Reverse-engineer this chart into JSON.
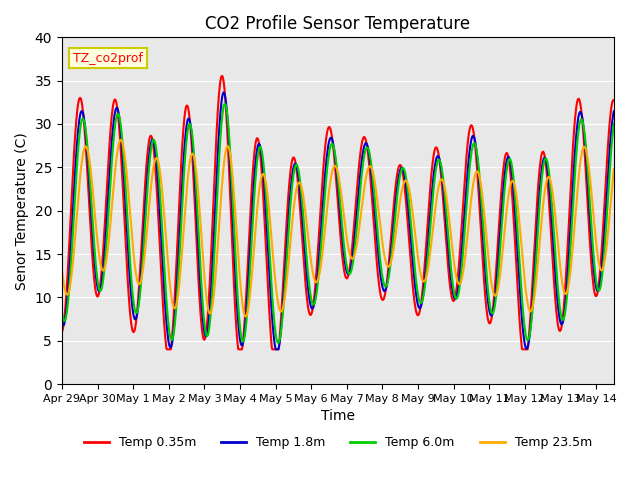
{
  "title": "CO2 Profile Sensor Temperature",
  "xlabel": "Time",
  "ylabel": "Senor Temperature (C)",
  "ylim": [
    0,
    40
  ],
  "yticks": [
    0,
    5,
    10,
    15,
    20,
    25,
    30,
    35,
    40
  ],
  "background_color": "#e8e8e8",
  "legend_label": "TZ_co2prof",
  "series": [
    "Temp 0.35m",
    "Temp 1.8m",
    "Temp 6.0m",
    "Temp 23.5m"
  ],
  "colors": [
    "#ff0000",
    "#0000cc",
    "#00cc00",
    "#ffaa00"
  ],
  "linewidth": 1.5,
  "start_day": 0,
  "num_days": 15.5,
  "xtick_labels": [
    "Apr 29",
    "Apr 30",
    "May 1",
    "May 2",
    "May 3",
    "May 4",
    "May 5",
    "May 6",
    "May 7",
    "May 8",
    "May 9",
    "May 10",
    "May 11",
    "May 12",
    "May 13",
    "May 14"
  ],
  "xtick_positions": [
    0,
    1,
    2,
    3,
    4,
    5,
    6,
    7,
    8,
    9,
    10,
    11,
    12,
    13,
    14,
    15
  ]
}
